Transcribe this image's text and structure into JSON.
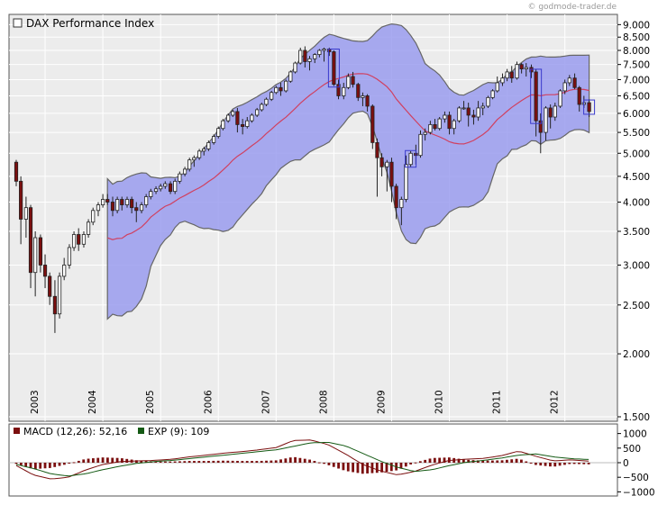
{
  "watermark": "© godmode-trader.de",
  "chart_data": [
    {
      "type": "candlestick",
      "title": "DAX Performance Index",
      "scale": "log",
      "ylim": [
        1500,
        9200
      ],
      "y_ticks": [
        "9.000",
        "8.500",
        "8.000",
        "7.500",
        "7.000",
        "6.500",
        "6.000",
        "5.500",
        "5.000",
        "4.500",
        "4.000",
        "3.500",
        "3.000",
        "2.500",
        "2.000",
        "1.500"
      ],
      "x_ticks": [
        "2003",
        "2004",
        "2005",
        "2006",
        "2007",
        "2008",
        "2009",
        "2010",
        "2011",
        "2012"
      ],
      "grid": true,
      "colors": {
        "up_candle": "#ffffff",
        "down_candle": "#7b0f0f",
        "band_fill": "#9a9cee",
        "band_edge": "#666666",
        "moving_average": "#d04060",
        "plot_bg": "#ececec"
      },
      "x": [
        2002.5,
        2002.58,
        2002.67,
        2002.75,
        2002.83,
        2002.92,
        2003.0,
        2003.08,
        2003.17,
        2003.25,
        2003.33,
        2003.42,
        2003.5,
        2003.58,
        2003.67,
        2003.75,
        2003.83,
        2003.92,
        2004.0,
        2004.08,
        2004.17,
        2004.25,
        2004.33,
        2004.42,
        2004.5,
        2004.58,
        2004.67,
        2004.75,
        2004.83,
        2004.92,
        2005.0,
        2005.08,
        2005.17,
        2005.25,
        2005.33,
        2005.42,
        2005.5,
        2005.58,
        2005.67,
        2005.75,
        2005.83,
        2005.92,
        2006.0,
        2006.08,
        2006.17,
        2006.25,
        2006.33,
        2006.42,
        2006.5,
        2006.58,
        2006.67,
        2006.75,
        2006.83,
        2006.92,
        2007.0,
        2007.08,
        2007.17,
        2007.25,
        2007.33,
        2007.42,
        2007.5,
        2007.58,
        2007.67,
        2007.75,
        2007.83,
        2007.92,
        2008.0,
        2008.08,
        2008.17,
        2008.25,
        2008.33,
        2008.42,
        2008.5,
        2008.58,
        2008.67,
        2008.75,
        2008.83,
        2008.92,
        2009.0,
        2009.08,
        2009.17,
        2009.25,
        2009.33,
        2009.42,
        2009.5,
        2009.58,
        2009.67,
        2009.75,
        2009.83,
        2009.92,
        2010.0,
        2010.08,
        2010.17,
        2010.25,
        2010.33,
        2010.42,
        2010.5,
        2010.58,
        2010.67,
        2010.75,
        2010.83,
        2010.92,
        2011.0,
        2011.08,
        2011.17,
        2011.25,
        2011.33,
        2011.42,
        2011.5,
        2011.58,
        2011.67,
        2011.75,
        2011.83,
        2011.92,
        2012.0,
        2012.08,
        2012.17,
        2012.25,
        2012.33,
        2012.42
      ],
      "candles": [
        [
          4800,
          4850,
          4300,
          4400
        ],
        [
          4400,
          4500,
          3300,
          3700
        ],
        [
          3700,
          4100,
          3400,
          3900
        ],
        [
          3900,
          3950,
          2700,
          2900
        ],
        [
          2900,
          3500,
          2600,
          3400
        ],
        [
          3400,
          3450,
          2900,
          3000
        ],
        [
          3000,
          3150,
          2700,
          2850
        ],
        [
          2850,
          2900,
          2500,
          2600
        ],
        [
          2600,
          2800,
          2200,
          2400
        ],
        [
          2400,
          2900,
          2350,
          2850
        ],
        [
          2850,
          3100,
          2800,
          3000
        ],
        [
          3000,
          3300,
          2950,
          3250
        ],
        [
          3250,
          3500,
          3200,
          3450
        ],
        [
          3450,
          3550,
          3200,
          3300
        ],
        [
          3300,
          3500,
          3250,
          3450
        ],
        [
          3450,
          3700,
          3400,
          3650
        ],
        [
          3650,
          3900,
          3600,
          3850
        ],
        [
          3850,
          4000,
          3750,
          3950
        ],
        [
          3950,
          4150,
          3900,
          4050
        ],
        [
          4050,
          4150,
          3950,
          4000
        ],
        [
          4000,
          4100,
          3750,
          3850
        ],
        [
          3850,
          4100,
          3800,
          4050
        ],
        [
          4050,
          4100,
          3850,
          3950
        ],
        [
          3950,
          4100,
          3900,
          4050
        ],
        [
          4050,
          4100,
          3800,
          3900
        ],
        [
          3900,
          4000,
          3650,
          3850
        ],
        [
          3850,
          4000,
          3800,
          3950
        ],
        [
          3950,
          4150,
          3900,
          4100
        ],
        [
          4100,
          4250,
          4050,
          4200
        ],
        [
          4200,
          4300,
          4150,
          4250
        ],
        [
          4250,
          4350,
          4200,
          4300
        ],
        [
          4300,
          4400,
          4250,
          4350
        ],
        [
          4350,
          4400,
          4150,
          4200
        ],
        [
          4200,
          4450,
          4150,
          4400
        ],
        [
          4400,
          4600,
          4350,
          4550
        ],
        [
          4550,
          4700,
          4500,
          4650
        ],
        [
          4650,
          4900,
          4600,
          4850
        ],
        [
          4850,
          4950,
          4700,
          4900
        ],
        [
          4900,
          5100,
          4850,
          5050
        ],
        [
          5050,
          5150,
          4950,
          5100
        ],
        [
          5100,
          5300,
          5050,
          5250
        ],
        [
          5250,
          5450,
          5200,
          5400
        ],
        [
          5400,
          5650,
          5350,
          5600
        ],
        [
          5600,
          5850,
          5550,
          5800
        ],
        [
          5800,
          6000,
          5750,
          5950
        ],
        [
          5950,
          6100,
          5900,
          6050
        ],
        [
          6050,
          6150,
          5500,
          5700
        ],
        [
          5700,
          5850,
          5450,
          5650
        ],
        [
          5650,
          5900,
          5600,
          5800
        ],
        [
          5800,
          6000,
          5750,
          5950
        ],
        [
          5950,
          6150,
          5900,
          6100
        ],
        [
          6100,
          6300,
          6050,
          6250
        ],
        [
          6250,
          6450,
          6200,
          6400
        ],
        [
          6400,
          6650,
          6350,
          6600
        ],
        [
          6600,
          6800,
          6550,
          6750
        ],
        [
          6750,
          6900,
          6500,
          6650
        ],
        [
          6650,
          7000,
          6600,
          6950
        ],
        [
          6950,
          7300,
          6900,
          7250
        ],
        [
          7250,
          7600,
          7200,
          7550
        ],
        [
          7550,
          8100,
          7500,
          8000
        ],
        [
          8000,
          8150,
          7400,
          7600
        ],
        [
          7600,
          7800,
          7300,
          7700
        ],
        [
          7700,
          7900,
          7550,
          7850
        ],
        [
          7850,
          8050,
          7750,
          8000
        ],
        [
          8000,
          8100,
          7600,
          8050
        ],
        [
          8050,
          8100,
          7800,
          7950
        ],
        [
          7950,
          8000,
          6800,
          6850
        ],
        [
          6850,
          7000,
          6400,
          6500
        ],
        [
          6500,
          6900,
          6400,
          6750
        ],
        [
          6750,
          7200,
          6700,
          7100
        ],
        [
          7100,
          7250,
          6750,
          6850
        ],
        [
          6850,
          6900,
          6350,
          6450
        ],
        [
          6450,
          6600,
          6200,
          6500
        ],
        [
          6500,
          6550,
          6050,
          6200
        ],
        [
          6200,
          6250,
          5100,
          5250
        ],
        [
          5250,
          5350,
          4100,
          4900
        ],
        [
          4900,
          5000,
          4500,
          4700
        ],
        [
          4700,
          4850,
          4200,
          4800
        ],
        [
          4800,
          4900,
          4000,
          4300
        ],
        [
          4300,
          4350,
          3700,
          3900
        ],
        [
          3900,
          4100,
          3600,
          4050
        ],
        [
          4050,
          4950,
          4000,
          4750
        ],
        [
          4750,
          5050,
          4700,
          5000
        ],
        [
          5000,
          5200,
          4750,
          4950
        ],
        [
          4950,
          5550,
          4900,
          5450
        ],
        [
          5450,
          5600,
          5300,
          5500
        ],
        [
          5500,
          5800,
          5450,
          5700
        ],
        [
          5700,
          5850,
          5550,
          5600
        ],
        [
          5600,
          5900,
          5550,
          5850
        ],
        [
          5850,
          6050,
          5750,
          5950
        ],
        [
          5950,
          6050,
          5450,
          5600
        ],
        [
          5600,
          5850,
          5450,
          5800
        ],
        [
          5800,
          6200,
          5750,
          6150
        ],
        [
          6150,
          6350,
          6100,
          6150
        ],
        [
          6150,
          6300,
          5650,
          5950
        ],
        [
          5950,
          6100,
          5700,
          5900
        ],
        [
          5900,
          6350,
          5800,
          6150
        ],
        [
          6150,
          6300,
          5950,
          6200
        ],
        [
          6200,
          6500,
          6150,
          6450
        ],
        [
          6450,
          6700,
          6400,
          6650
        ],
        [
          6650,
          7100,
          6600,
          6900
        ],
        [
          6900,
          7200,
          6800,
          7050
        ],
        [
          7050,
          7350,
          6950,
          7250
        ],
        [
          7250,
          7450,
          6900,
          7050
        ],
        [
          7050,
          7600,
          7000,
          7500
        ],
        [
          7500,
          7550,
          7200,
          7350
        ],
        [
          7350,
          7550,
          7100,
          7400
        ],
        [
          7400,
          7500,
          7050,
          7250
        ],
        [
          7250,
          7350,
          5400,
          5800
        ],
        [
          5800,
          6000,
          5000,
          5500
        ],
        [
          5500,
          6200,
          5300,
          6150
        ],
        [
          6150,
          6250,
          5600,
          5900
        ],
        [
          5900,
          6300,
          5800,
          6200
        ],
        [
          6200,
          6700,
          6150,
          6650
        ],
        [
          6650,
          7000,
          6550,
          6900
        ],
        [
          6900,
          7150,
          6800,
          7050
        ],
        [
          7050,
          7200,
          6700,
          6750
        ],
        [
          6750,
          6800,
          6050,
          6250
        ],
        [
          6250,
          6500,
          6150,
          6300
        ],
        [
          6300,
          6400,
          5900,
          6050
        ]
      ],
      "macd_panel": {
        "legend": [
          {
            "label": "MACD (12,26): 52,16",
            "color": "#7b0f0f"
          },
          {
            "label": "EXP (9): 109",
            "color": "#145a14"
          }
        ],
        "y_ticks": [
          "1000",
          "500",
          "0",
          "−500",
          "−1000"
        ],
        "ylim": [
          -1050,
          1050
        ],
        "x": [
          2002.5,
          2002.8,
          2003.1,
          2003.4,
          2003.7,
          2004.0,
          2004.3,
          2004.6,
          2004.9,
          2005.2,
          2005.5,
          2005.8,
          2006.1,
          2006.4,
          2006.7,
          2007.0,
          2007.3,
          2007.6,
          2007.9,
          2008.2,
          2008.5,
          2008.8,
          2009.1,
          2009.4,
          2009.7,
          2010.0,
          2010.3,
          2010.6,
          2010.9,
          2011.2,
          2011.5,
          2011.8,
          2012.1,
          2012.42
        ],
        "series": [
          {
            "name": "MACD (12,26)",
            "values": [
              -100,
              -420,
              -560,
              -500,
              -250,
              -60,
              40,
              60,
              80,
              120,
              200,
              260,
              330,
              380,
              440,
              520,
              760,
              780,
              620,
              300,
              -60,
              -280,
              -420,
              -300,
              -80,
              80,
              120,
              150,
              240,
              400,
              220,
              60,
              100,
              52
            ]
          },
          {
            "name": "EXP (9)",
            "values": [
              -60,
              -200,
              -380,
              -460,
              -380,
              -240,
              -120,
              -20,
              40,
              80,
              140,
              200,
              260,
              320,
              380,
              440,
              560,
              680,
              700,
              580,
              320,
              60,
              -160,
              -300,
              -240,
              -100,
              20,
              80,
              160,
              260,
              300,
              200,
              140,
              109
            ]
          }
        ]
      }
    }
  ]
}
